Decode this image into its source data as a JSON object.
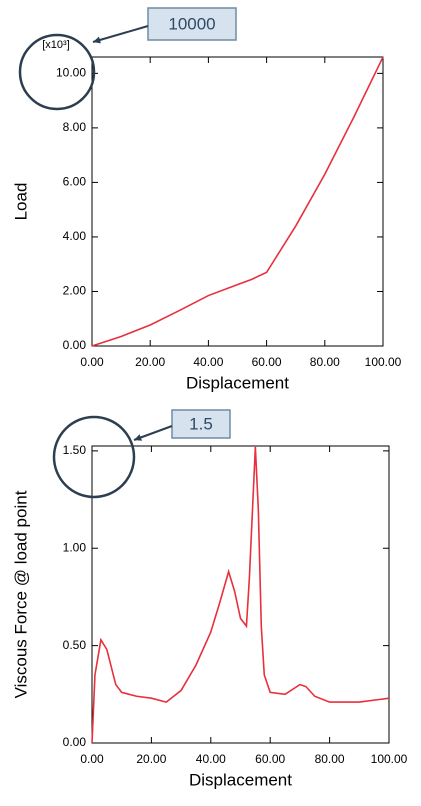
{
  "chart_data": [
    {
      "type": "line",
      "ylabel": "Load",
      "xlabel": "Displacement",
      "multiplier": "[x10³]",
      "callout": "10000",
      "xlim": [
        0,
        100
      ],
      "ylim": [
        0,
        10.6
      ],
      "xticks": [
        {
          "value": 0,
          "label": "0.00"
        },
        {
          "value": 20,
          "label": "20.00"
        },
        {
          "value": 40,
          "label": "40.00"
        },
        {
          "value": 60,
          "label": "60.00"
        },
        {
          "value": 80,
          "label": "80.00"
        },
        {
          "value": 100,
          "label": "100.00"
        }
      ],
      "yticks": [
        {
          "value": 0,
          "label": "0.00"
        },
        {
          "value": 2,
          "label": "2.00"
        },
        {
          "value": 4,
          "label": "4.00"
        },
        {
          "value": 6,
          "label": "6.00"
        },
        {
          "value": 8,
          "label": "8.00"
        },
        {
          "value": 10,
          "label": "10.00"
        }
      ],
      "color": "#e8303c",
      "x": [
        0,
        10,
        20,
        30,
        40,
        50,
        55,
        60,
        70,
        80,
        90,
        100
      ],
      "values": [
        0,
        0.35,
        0.77,
        1.3,
        1.85,
        2.25,
        2.45,
        2.7,
        4.4,
        6.3,
        8.4,
        10.6
      ]
    },
    {
      "type": "line",
      "ylabel": "Viscous Force @ load point",
      "xlabel": "Displacement",
      "callout": "1.5",
      "xlim": [
        0,
        100
      ],
      "ylim": [
        0,
        1.525
      ],
      "xticks": [
        {
          "value": 0,
          "label": "0.00"
        },
        {
          "value": 20,
          "label": "20.00"
        },
        {
          "value": 40,
          "label": "40.00"
        },
        {
          "value": 60,
          "label": "60.00"
        },
        {
          "value": 80,
          "label": "80.00"
        },
        {
          "value": 100,
          "label": "100.00"
        }
      ],
      "yticks": [
        {
          "value": 0,
          "label": "0.00"
        },
        {
          "value": 0.5,
          "label": "0.50"
        },
        {
          "value": 1,
          "label": "1.00"
        },
        {
          "value": 1.5,
          "label": "1.50"
        }
      ],
      "color": "#e8303c",
      "x": [
        0,
        1,
        3,
        5,
        8,
        10,
        15,
        20,
        25,
        30,
        35,
        40,
        43,
        46,
        48,
        50,
        52,
        53,
        55,
        56,
        57,
        58,
        60,
        65,
        70,
        72,
        75,
        80,
        90,
        100
      ],
      "values": [
        0,
        0.35,
        0.53,
        0.48,
        0.3,
        0.26,
        0.24,
        0.23,
        0.21,
        0.27,
        0.4,
        0.57,
        0.72,
        0.88,
        0.78,
        0.64,
        0.6,
        0.85,
        1.52,
        1.2,
        0.6,
        0.35,
        0.26,
        0.25,
        0.3,
        0.29,
        0.24,
        0.21,
        0.21,
        0.23
      ]
    }
  ]
}
